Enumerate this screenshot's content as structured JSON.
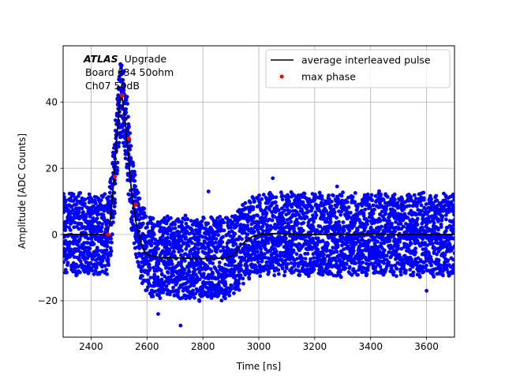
{
  "chart_data": {
    "type": "scatter",
    "title": "",
    "xlabel": "Time [ns]",
    "ylabel": "Amplitude [ADC Counts]",
    "xlim": [
      2300,
      3700
    ],
    "ylim": [
      -31,
      57
    ],
    "xticks": [
      2400,
      2600,
      2800,
      3000,
      3200,
      3400,
      3600
    ],
    "yticks": [
      -20,
      0,
      20,
      40
    ],
    "grid": true,
    "legend_position": "top-right",
    "annotation": {
      "atlas": "ATLAS",
      "upgrade": "Upgrade",
      "line2": "Board 634 50ohm",
      "line3": "Ch07 50dB"
    },
    "colors": {
      "samples": "#0000ff",
      "average": "#000000",
      "max_phase": "#ff0000"
    },
    "series": [
      {
        "name": "average interleaved pulse",
        "kind": "line",
        "x": [
          2300,
          2350,
          2400,
          2440,
          2460,
          2470,
          2480,
          2490,
          2500,
          2505,
          2510,
          2520,
          2530,
          2540,
          2550,
          2560,
          2570,
          2580,
          2590,
          2600,
          2620,
          2650,
          2700,
          2750,
          2800,
          2850,
          2880,
          2900,
          2920,
          2940,
          2960,
          2980,
          3000,
          3050,
          3100,
          3200,
          3300,
          3400,
          3500,
          3600,
          3700
        ],
        "y": [
          0,
          0,
          0,
          0,
          0.5,
          5,
          15,
          27,
          38,
          42,
          42,
          36,
          27,
          17,
          9,
          4,
          0,
          -3,
          -5,
          -6,
          -6.5,
          -7,
          -7,
          -7.2,
          -7.3,
          -7.2,
          -7,
          -6.5,
          -5,
          -3,
          -1.5,
          -0.5,
          0,
          0.3,
          0.2,
          0,
          0,
          0.2,
          0,
          0,
          0
        ]
      },
      {
        "name": "max phase",
        "kind": "points",
        "x": [
          2460,
          2485,
          2510,
          2535,
          2560
        ],
        "y": [
          0,
          17.5,
          42,
          29,
          9
        ]
      }
    ],
    "samples": {
      "name": "samples",
      "color": "#0000ff",
      "noise_band_half_width": 13,
      "outliers": [
        {
          "x": 2720,
          "y": -27.5
        },
        {
          "x": 2820,
          "y": 13
        },
        {
          "x": 3050,
          "y": 17
        },
        {
          "x": 3600,
          "y": -17
        },
        {
          "x": 3280,
          "y": 14.5
        },
        {
          "x": 2640,
          "y": -24
        }
      ]
    }
  }
}
